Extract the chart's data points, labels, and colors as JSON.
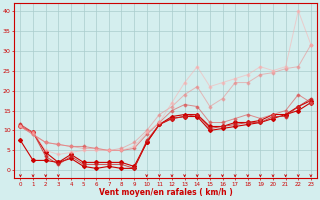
{
  "title": "",
  "xlabel": "Vent moyen/en rafales ( km/h )",
  "background_color": "#d4eeee",
  "grid_color": "#aacccc",
  "text_color": "#cc0000",
  "x_ticks": [
    0,
    1,
    2,
    3,
    4,
    5,
    6,
    7,
    8,
    9,
    10,
    11,
    12,
    13,
    14,
    15,
    16,
    17,
    18,
    19,
    20,
    21,
    22,
    23
  ],
  "y_ticks": [
    0,
    5,
    10,
    15,
    20,
    25,
    30,
    35,
    40
  ],
  "ylim": [
    -2,
    42
  ],
  "xlim": [
    -0.5,
    23.5
  ],
  "series": [
    {
      "x": [
        0,
        1,
        2,
        3,
        4,
        5,
        6,
        7,
        8,
        9,
        10,
        11,
        12,
        13,
        14,
        15,
        16,
        17,
        18,
        19,
        20,
        21,
        22,
        23
      ],
      "y": [
        7.5,
        2.5,
        2.5,
        2,
        3,
        1,
        0.5,
        1,
        0.5,
        0.5,
        7,
        11.5,
        13,
        13.5,
        13.5,
        10,
        10.5,
        11,
        11.5,
        12,
        13,
        14,
        15,
        17
      ],
      "color": "#cc0000",
      "marker": "D",
      "marker_size": 2.0,
      "linewidth": 0.8,
      "alpha": 1.0
    },
    {
      "x": [
        0,
        1,
        2,
        3,
        4,
        5,
        6,
        7,
        8,
        9,
        10,
        11,
        12,
        13,
        14,
        15,
        16,
        17,
        18,
        19,
        20,
        21,
        22,
        23
      ],
      "y": [
        11,
        9.5,
        4.5,
        2,
        4,
        2,
        2,
        2,
        2,
        1,
        7,
        11.5,
        13.5,
        14,
        14,
        11,
        11,
        12,
        12,
        12.5,
        14,
        14,
        16,
        17.5
      ],
      "color": "#cc0000",
      "marker": "D",
      "marker_size": 2.0,
      "linewidth": 0.8,
      "alpha": 1.0
    },
    {
      "x": [
        0,
        1,
        2,
        3,
        4,
        5,
        6,
        7,
        8,
        9,
        10,
        11,
        12,
        13,
        14,
        15,
        16,
        17,
        18,
        19,
        20,
        21,
        22,
        23
      ],
      "y": [
        11.5,
        9.5,
        3.5,
        1.5,
        3.5,
        1.5,
        1.5,
        1.5,
        1.5,
        0.5,
        7.5,
        11.5,
        13,
        13.5,
        14,
        10.5,
        11,
        11.5,
        12,
        12,
        13.5,
        13.5,
        16,
        18
      ],
      "color": "#cc2222",
      "marker": "D",
      "marker_size": 1.5,
      "linewidth": 0.7,
      "alpha": 0.8
    },
    {
      "x": [
        0,
        1,
        2,
        3,
        4,
        5,
        6,
        7,
        8,
        9,
        10,
        11,
        12,
        13,
        14,
        15,
        16,
        17,
        18,
        19,
        20,
        21,
        22,
        23
      ],
      "y": [
        11,
        9,
        7,
        6.5,
        6,
        6,
        5.5,
        5,
        5,
        5.5,
        9,
        12,
        15,
        16.5,
        16,
        12,
        12,
        13,
        14,
        13,
        14,
        15,
        19,
        17
      ],
      "color": "#dd5555",
      "marker": "D",
      "marker_size": 1.5,
      "linewidth": 0.7,
      "alpha": 0.65
    },
    {
      "x": [
        0,
        1,
        2,
        3,
        4,
        5,
        6,
        7,
        8,
        9,
        10,
        11,
        12,
        13,
        14,
        15,
        16,
        17,
        18,
        19,
        20,
        21,
        22,
        23
      ],
      "y": [
        11,
        9,
        7,
        6.5,
        6,
        5.5,
        5.5,
        5,
        5.5,
        7,
        10,
        14,
        16,
        19,
        21,
        16,
        18,
        22,
        22,
        24,
        24.5,
        25.5,
        26,
        31.5
      ],
      "color": "#ee8888",
      "marker": "D",
      "marker_size": 1.5,
      "linewidth": 0.7,
      "alpha": 0.55
    },
    {
      "x": [
        0,
        1,
        2,
        3,
        4,
        5,
        6,
        7,
        8,
        9,
        10,
        11,
        12,
        13,
        14,
        15,
        16,
        17,
        18,
        19,
        20,
        21,
        22,
        23
      ],
      "y": [
        11,
        9.5,
        5,
        4,
        4.5,
        5,
        5,
        5,
        5,
        6,
        9.5,
        12,
        17,
        22,
        26,
        21,
        22,
        23,
        24,
        26,
        25,
        26,
        40,
        31.5
      ],
      "color": "#ffaaaa",
      "marker": "D",
      "marker_size": 1.5,
      "linewidth": 0.7,
      "alpha": 0.5
    }
  ],
  "arrow_x_positions": [
    0,
    1,
    2,
    3,
    10,
    11,
    12,
    13,
    14,
    15,
    16,
    17,
    18,
    19,
    20,
    21,
    22,
    23
  ]
}
